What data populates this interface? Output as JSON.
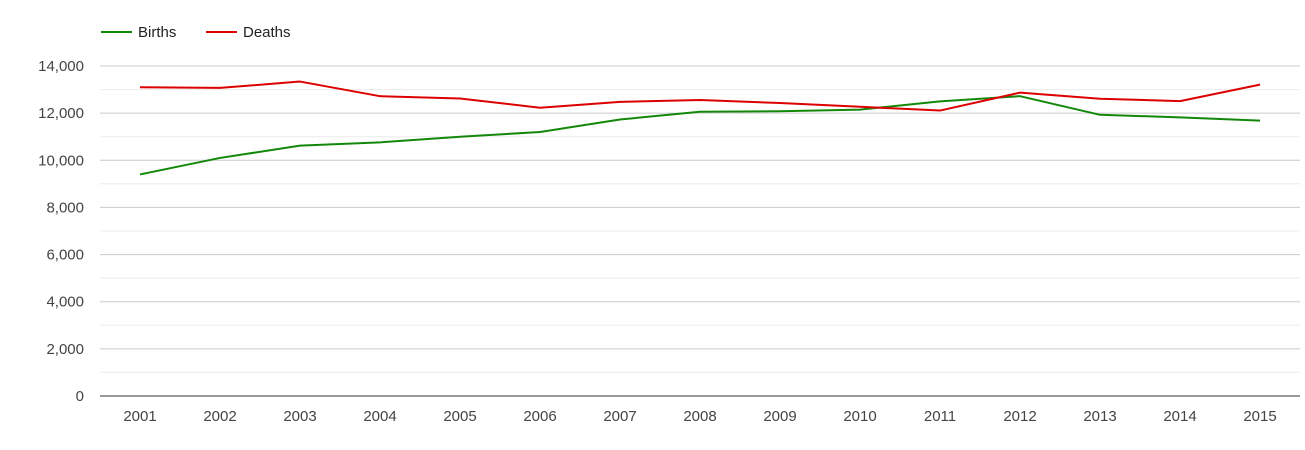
{
  "chart_data": {
    "type": "line",
    "categories": [
      "2001",
      "2002",
      "2003",
      "2004",
      "2005",
      "2006",
      "2007",
      "2008",
      "2009",
      "2010",
      "2011",
      "2012",
      "2013",
      "2014",
      "2015"
    ],
    "series": [
      {
        "name": "Births",
        "color": "#138808",
        "values": [
          9400,
          10100,
          10620,
          10760,
          11000,
          11200,
          11730,
          12060,
          12080,
          12150,
          12500,
          12720,
          11930,
          11820,
          11680
        ]
      },
      {
        "name": "Deaths",
        "color": "#dd0000",
        "values": [
          13100,
          13070,
          13340,
          12720,
          12620,
          12230,
          12480,
          12560,
          12430,
          12270,
          12110,
          12870,
          12610,
          12510,
          13210
        ]
      }
    ],
    "yticks": [
      "0",
      "2,000",
      "4,000",
      "6,000",
      "8,000",
      "10,000",
      "12,000",
      "14,000"
    ],
    "ylim": [
      0,
      14000
    ],
    "grid": true,
    "legend_position": "top-left"
  }
}
